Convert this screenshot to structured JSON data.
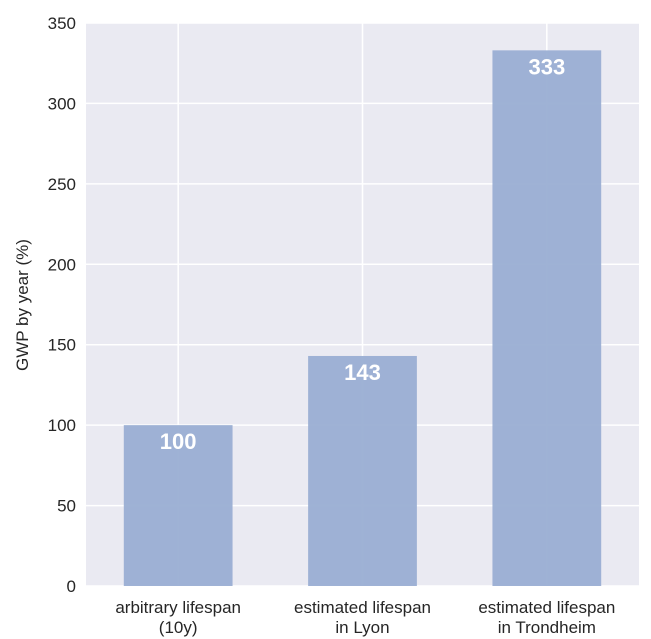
{
  "chart_data": {
    "type": "bar",
    "title": "",
    "xlabel": "",
    "ylabel": "GWP by year (%)",
    "categories": [
      [
        "arbitrary lifespan",
        "(10y)"
      ],
      [
        "estimated lifespan",
        "in Lyon"
      ],
      [
        "estimated lifespan",
        "in Trondheim"
      ]
    ],
    "values": [
      100,
      143,
      333
    ],
    "data_labels": [
      "100",
      "143",
      "333"
    ],
    "ylim": [
      0,
      350
    ],
    "yticks": [
      0,
      50,
      100,
      150,
      200,
      250,
      300,
      350
    ],
    "ytick_labels": [
      "0",
      "50",
      "100",
      "150",
      "200",
      "250",
      "300",
      "350"
    ],
    "grid": true,
    "legend": "none",
    "colors": {
      "bar": "#9aaed3",
      "background": "#eaeaf2",
      "grid": "#ffffff"
    }
  }
}
